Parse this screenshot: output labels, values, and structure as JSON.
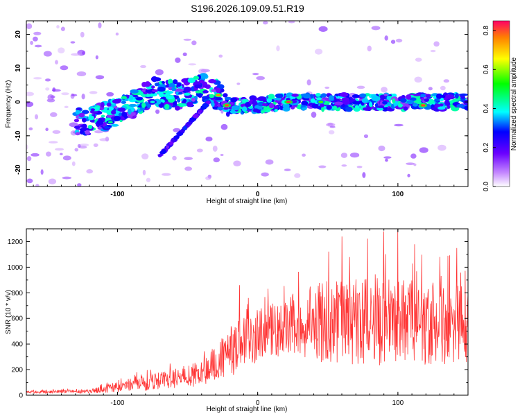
{
  "title": "S196.2026.109.09.51.R19",
  "chart_data": [
    {
      "type": "heatmap",
      "name": "spectrogram",
      "xlabel": "Height of straight line (km)",
      "ylabel": "Frequency (Hz)",
      "xlim": [
        -165,
        150
      ],
      "ylim": [
        -25,
        24
      ],
      "xticks": [
        "-100",
        "0",
        "100"
      ],
      "yticks": [
        "20",
        "10",
        "0",
        "-10",
        "-20"
      ],
      "colorbar": {
        "label": "Normalized spectral amplitude",
        "range": [
          0,
          0.85
        ],
        "ticks": [
          "0.0",
          "0.2",
          "0.4",
          "0.6",
          "0.8"
        ]
      },
      "ridge": [
        {
          "x": -120,
          "y": -6
        },
        {
          "x": -95,
          "y": -2
        },
        {
          "x": -75,
          "y": 3
        },
        {
          "x": -55,
          "y": 2
        },
        {
          "x": -40,
          "y": 4
        },
        {
          "x": -28,
          "y": 2
        },
        {
          "x": -20,
          "y": -1
        },
        {
          "x": 0,
          "y": -1
        },
        {
          "x": 20,
          "y": 0
        },
        {
          "x": 50,
          "y": 0
        },
        {
          "x": 80,
          "y": 0
        },
        {
          "x": 110,
          "y": 0
        },
        {
          "x": 140,
          "y": 0
        }
      ],
      "hotspots": [
        {
          "x": -28,
          "y": 2,
          "v": 0.75
        },
        {
          "x": -22,
          "y": -1,
          "v": 0.8
        },
        {
          "x": 22,
          "y": 0,
          "v": 0.82
        },
        {
          "x": 45,
          "y": 0,
          "v": 0.55
        },
        {
          "x": 118,
          "y": -1,
          "v": 0.8
        },
        {
          "x": -105,
          "y": -6,
          "v": 0.45
        },
        {
          "x": -75,
          "y": 0,
          "v": 0.4
        }
      ]
    },
    {
      "type": "line",
      "name": "snr",
      "xlabel": "Height of straight line (km)",
      "ylabel": "SNR (10 * v/v)",
      "xlim": [
        -165,
        150
      ],
      "ylim": [
        0,
        1300
      ],
      "xticks": [
        "-100",
        "0",
        "100"
      ],
      "yticks": [
        "0",
        "200",
        "400",
        "600",
        "800",
        "1000",
        "1200"
      ],
      "color": "#ff3333",
      "envelope": [
        {
          "x": -165,
          "mean": 25,
          "amp": 10
        },
        {
          "x": -120,
          "mean": 30,
          "amp": 15
        },
        {
          "x": -95,
          "mean": 70,
          "amp": 50
        },
        {
          "x": -65,
          "mean": 120,
          "amp": 70
        },
        {
          "x": -40,
          "mean": 170,
          "amp": 100
        },
        {
          "x": -25,
          "mean": 300,
          "amp": 160
        },
        {
          "x": -15,
          "mean": 380,
          "amp": 220
        },
        {
          "x": 0,
          "mean": 450,
          "amp": 220
        },
        {
          "x": 20,
          "mean": 540,
          "amp": 230
        },
        {
          "x": 50,
          "mean": 580,
          "amp": 330
        },
        {
          "x": 80,
          "mean": 600,
          "amp": 370
        },
        {
          "x": 110,
          "mean": 570,
          "amp": 360
        },
        {
          "x": 150,
          "mean": 560,
          "amp": 300
        }
      ],
      "peaks": [
        {
          "x": -13,
          "y": 860
        },
        {
          "x": 60,
          "y": 1240
        },
        {
          "x": 90,
          "y": 1280
        },
        {
          "x": 100,
          "y": 1290
        },
        {
          "x": 112,
          "y": 1180
        },
        {
          "x": 130,
          "y": 1080
        },
        {
          "x": 142,
          "y": 1150
        }
      ]
    }
  ]
}
